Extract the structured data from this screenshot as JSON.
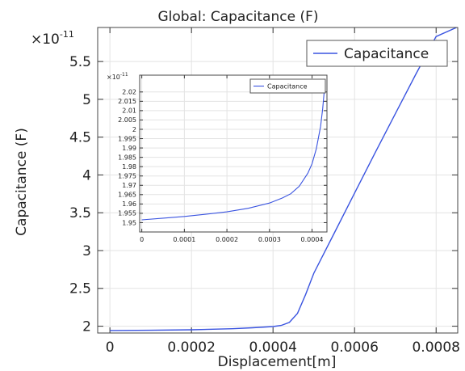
{
  "chart_data": [
    {
      "type": "line",
      "title": "Global: Capacitance (F)",
      "xlabel": "Displacement[m]",
      "ylabel": "Capacitance (F)",
      "y_exponent_label": "×10",
      "y_exponent_power": "-11",
      "xlim": [
        -3e-05,
        0.000853
      ],
      "ylim": [
        1.91,
        5.95
      ],
      "x_ticks": [
        0,
        0.0002,
        0.0004,
        0.0006,
        0.0008
      ],
      "x_tick_labels": [
        "0",
        "0.0002",
        "0.0004",
        "0.0006",
        "0.0008"
      ],
      "y_ticks": [
        2,
        2.5,
        3,
        3.5,
        4,
        4.5,
        5,
        5.5
      ],
      "y_tick_labels": [
        "2",
        "2.5",
        "3",
        "3.5",
        "4",
        "4.5",
        "5",
        "5.5"
      ],
      "grid": true,
      "legend_position": "top-right",
      "series": [
        {
          "name": "Capacitance",
          "color": "#3a54e0",
          "x": [
            0,
            0.0001,
            0.0002,
            0.0003,
            0.00035,
            0.0004,
            0.00042,
            0.00044,
            0.00046,
            0.00048,
            0.0005,
            0.00055,
            0.0006,
            0.00065,
            0.0007,
            0.00075,
            0.0008,
            0.00085
          ],
          "y": [
            1.943,
            1.946,
            1.953,
            1.967,
            1.979,
            1.995,
            2.01,
            2.05,
            2.17,
            2.42,
            2.7,
            3.23,
            3.76,
            4.29,
            4.81,
            5.33,
            5.83,
            5.95
          ]
        }
      ]
    },
    {
      "type": "line",
      "title": "",
      "xlabel": "",
      "ylabel": "",
      "y_exponent_label": "×10",
      "y_exponent_power": "-11",
      "xlim": [
        -5e-06,
        0.000435
      ],
      "ylim": [
        1.945,
        2.029
      ],
      "x_ticks": [
        0,
        0.0001,
        0.0002,
        0.0003,
        0.0004
      ],
      "x_tick_labels": [
        "0",
        "0.0001",
        "0.0002",
        "0.0003",
        "0.0004"
      ],
      "y_ticks": [
        1.95,
        1.955,
        1.96,
        1.965,
        1.97,
        1.975,
        1.98,
        1.985,
        1.99,
        1.995,
        2,
        2.005,
        2.01,
        2.015,
        2.02
      ],
      "y_tick_labels": [
        "1.95",
        "1.955",
        "1.96",
        "1.965",
        "1.97",
        "1.975",
        "1.98",
        "1.985",
        "1.99",
        "1.995",
        "2",
        "2.005",
        "2.01",
        "2.015",
        "2.02"
      ],
      "grid": true,
      "legend_position": "top-right",
      "series": [
        {
          "name": "Capacitance",
          "color": "#3a54e0",
          "x": [
            0,
            5e-05,
            0.0001,
            0.00015,
            0.0002,
            0.00025,
            0.0003,
            0.00033,
            0.00035,
            0.00037,
            0.00039,
            0.0004,
            0.00041,
            0.00042,
            0.000425,
            0.00043
          ],
          "y": [
            1.9515,
            1.9524,
            1.9533,
            1.9545,
            1.9558,
            1.9577,
            1.9605,
            1.9632,
            1.9655,
            1.9695,
            1.9765,
            1.9815,
            1.9895,
            2.0015,
            2.011,
            2.024
          ]
        }
      ]
    }
  ]
}
